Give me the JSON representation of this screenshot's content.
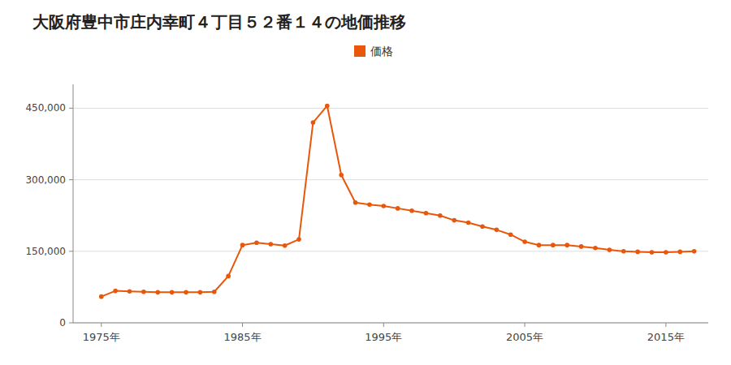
{
  "chart_data": {
    "type": "line",
    "title": "大阪府豊中市庄内幸町４丁目５２番１４の地価推移",
    "x": [
      1975,
      1976,
      1977,
      1978,
      1979,
      1980,
      1981,
      1982,
      1983,
      1984,
      1985,
      1986,
      1987,
      1988,
      1989,
      1990,
      1991,
      1992,
      1993,
      1994,
      1995,
      1996,
      1997,
      1998,
      1999,
      2000,
      2001,
      2002,
      2003,
      2004,
      2005,
      2006,
      2007,
      2008,
      2009,
      2010,
      2011,
      2012,
      2013,
      2014,
      2015,
      2016,
      2017
    ],
    "series": [
      {
        "name": "価格",
        "color": "#e8570a",
        "marker": "circle",
        "values": [
          55000,
          67000,
          66000,
          65000,
          64000,
          64000,
          64000,
          64000,
          65000,
          98000,
          163000,
          168000,
          165000,
          162000,
          175000,
          420000,
          455000,
          310000,
          252000,
          248000,
          245000,
          240000,
          235000,
          230000,
          225000,
          215000,
          210000,
          202000,
          195000,
          185000,
          170000,
          163000,
          163000,
          163000,
          160000,
          157000,
          153000,
          150000,
          149000,
          148000,
          148000,
          149000,
          150000
        ]
      }
    ],
    "xlim": [
      1973,
      2018
    ],
    "xticks": [
      {
        "value": 1975,
        "label": "1975年"
      },
      {
        "value": 1985,
        "label": "1985年"
      },
      {
        "value": 1995,
        "label": "1995年"
      },
      {
        "value": 2005,
        "label": "2005年"
      },
      {
        "value": 2015,
        "label": "2015年"
      }
    ],
    "ylim": [
      0,
      500000
    ],
    "yticks": [
      0,
      {
        "value": 150000,
        "label": "150,000"
      },
      {
        "value": 300000,
        "label": "300,000"
      },
      {
        "value": 450000,
        "label": "450,000"
      }
    ],
    "grid": true,
    "legend": "top"
  }
}
